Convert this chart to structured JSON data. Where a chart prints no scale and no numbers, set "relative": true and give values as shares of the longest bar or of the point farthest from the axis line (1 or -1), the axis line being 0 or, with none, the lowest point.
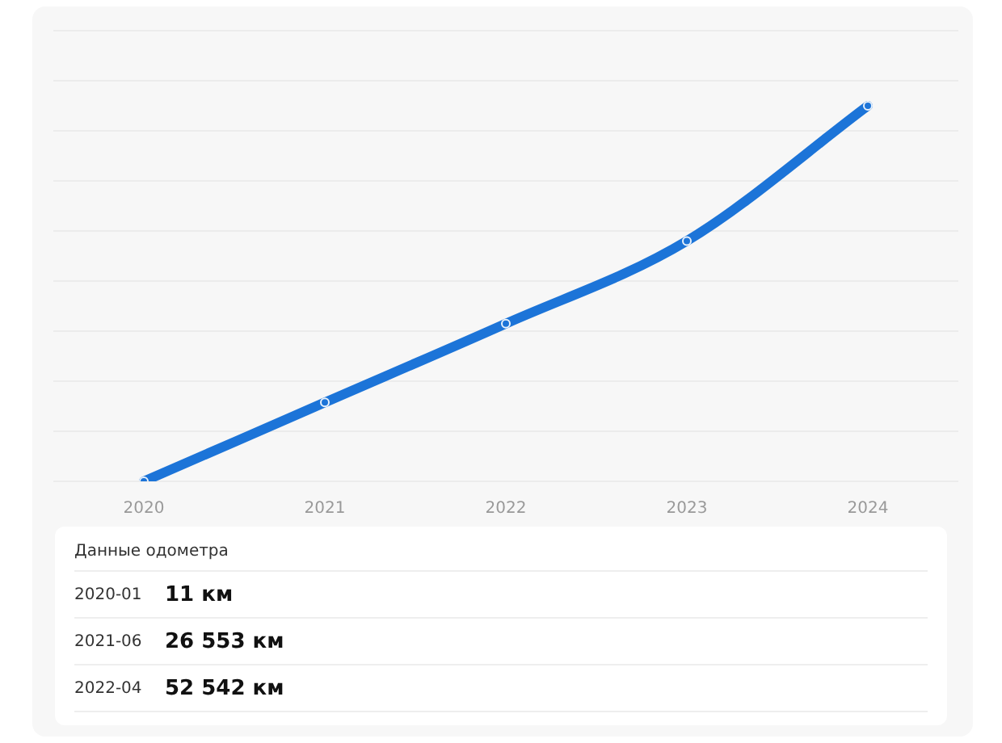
{
  "chart_data": {
    "type": "line",
    "relative": true,
    "categories": [
      "2020",
      "2021",
      "2022",
      "2023",
      "2024"
    ],
    "series": [
      {
        "color": "#1c74d8",
        "values": [
          0,
          0.21,
          0.42,
          0.64,
          1
        ]
      }
    ],
    "grid": "y",
    "marker": "circle",
    "legend": false,
    "annotations": [
      "Данные одометра",
      "2020-01",
      "11 км",
      "2021-06",
      "26 553 км",
      "2022-04",
      "52 542 км"
    ]
  }
}
